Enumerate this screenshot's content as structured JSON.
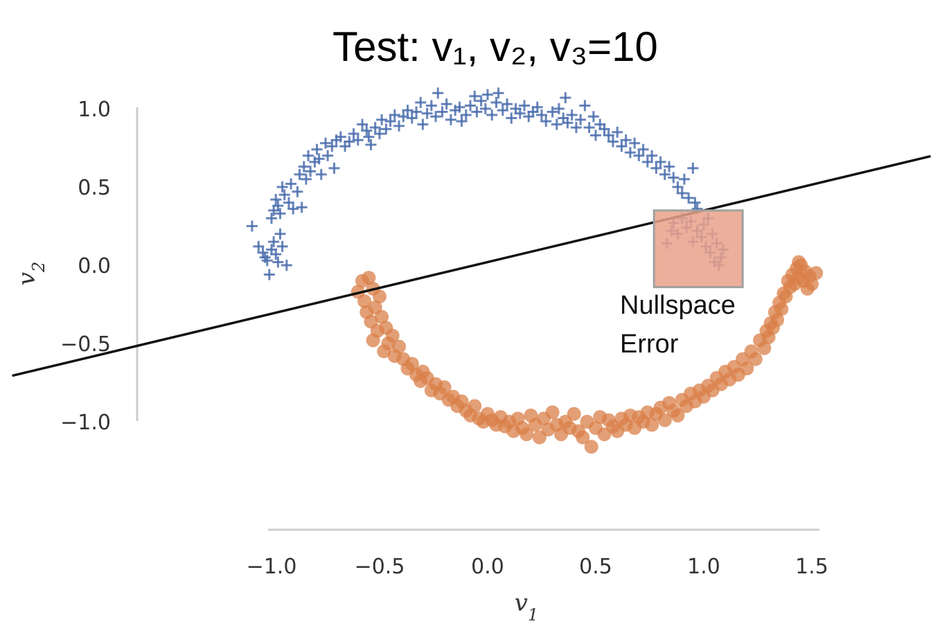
{
  "chart_data": {
    "type": "scatter",
    "title": "Test: v₁, v₂, v₃=10",
    "xlabel": "v",
    "xlabel_sub": "1",
    "ylabel": "v",
    "ylabel_sub": "2",
    "xlim": [
      -1.0,
      1.5
    ],
    "ylim": [
      -1.0,
      1.0
    ],
    "xticks": [
      -1.0,
      -0.5,
      0.0,
      0.5,
      1.0,
      1.5
    ],
    "xtick_labels": [
      "−1.0",
      "−0.5",
      "0.0",
      "0.5",
      "1.0",
      "1.5"
    ],
    "yticks": [
      1.0,
      0.5,
      0.0,
      -0.5,
      -1.0
    ],
    "ytick_labels": [
      "1.0",
      "0.5",
      "0.0",
      "−0.5",
      "−1.0"
    ],
    "grid": false,
    "decision_line": {
      "slope": 0.33,
      "intercept": 0.02
    },
    "annotation": {
      "lines": [
        "Nullspace",
        "Error"
      ],
      "region": {
        "x": [
          0.77,
          1.18
        ],
        "y": [
          -0.14,
          0.35
        ]
      },
      "color": "#e9a189"
    },
    "series": [
      {
        "marker": "plus",
        "color": "#4c6fae",
        "points": [
          [
            -1.09,
            0.25
          ],
          [
            -1.06,
            0.12
          ],
          [
            -1.04,
            0.08
          ],
          [
            -1.03,
            0.05
          ],
          [
            -1.02,
            0.03
          ],
          [
            -1.01,
            -0.06
          ],
          [
            -1.0,
            0.1
          ],
          [
            -0.99,
            0.15
          ],
          [
            -0.98,
            0.07
          ],
          [
            -0.97,
            0.02
          ],
          [
            -0.96,
            0.2
          ],
          [
            -0.95,
            0.12
          ],
          [
            -0.93,
            0.0
          ],
          [
            -1.0,
            0.3
          ],
          [
            -0.99,
            0.35
          ],
          [
            -0.98,
            0.42
          ],
          [
            -0.97,
            0.38
          ],
          [
            -0.96,
            0.33
          ],
          [
            -0.95,
            0.5
          ],
          [
            -0.94,
            0.45
          ],
          [
            -0.92,
            0.4
          ],
          [
            -0.91,
            0.52
          ],
          [
            -0.9,
            0.36
          ],
          [
            -0.88,
            0.47
          ],
          [
            -0.86,
            0.37
          ],
          [
            -0.87,
            0.58
          ],
          [
            -0.85,
            0.63
          ],
          [
            -0.84,
            0.55
          ],
          [
            -0.83,
            0.7
          ],
          [
            -0.82,
            0.6
          ],
          [
            -0.8,
            0.66
          ],
          [
            -0.79,
            0.74
          ],
          [
            -0.78,
            0.68
          ],
          [
            -0.77,
            0.58
          ],
          [
            -0.75,
            0.78
          ],
          [
            -0.74,
            0.7
          ],
          [
            -0.72,
            0.76
          ],
          [
            -0.71,
            0.62
          ],
          [
            -0.7,
            0.8
          ],
          [
            -0.68,
            0.82
          ],
          [
            -0.66,
            0.76
          ],
          [
            -0.64,
            0.79
          ],
          [
            -0.62,
            0.84
          ],
          [
            -0.6,
            0.8
          ],
          [
            -0.58,
            0.9
          ],
          [
            -0.56,
            0.86
          ],
          [
            -0.55,
            0.82
          ],
          [
            -0.54,
            0.77
          ],
          [
            -0.52,
            0.88
          ],
          [
            -0.5,
            0.84
          ],
          [
            -0.49,
            0.93
          ],
          [
            -0.47,
            0.87
          ],
          [
            -0.45,
            0.92
          ],
          [
            -0.43,
            0.96
          ],
          [
            -0.41,
            0.89
          ],
          [
            -0.39,
            0.95
          ],
          [
            -0.37,
            0.99
          ],
          [
            -0.35,
            0.94
          ],
          [
            -0.33,
            0.98
          ],
          [
            -0.31,
            1.04
          ],
          [
            -0.3,
            0.9
          ],
          [
            -0.28,
            0.97
          ],
          [
            -0.26,
            1.02
          ],
          [
            -0.24,
            0.95
          ],
          [
            -0.23,
            1.1
          ],
          [
            -0.21,
            0.98
          ],
          [
            -0.19,
            1.03
          ],
          [
            -0.17,
            0.93
          ],
          [
            -0.15,
            0.99
          ],
          [
            -0.13,
            1.01
          ],
          [
            -0.12,
            0.92
          ],
          [
            -0.1,
            0.96
          ],
          [
            -0.08,
            1.02
          ],
          [
            -0.06,
            1.08
          ],
          [
            -0.05,
            0.98
          ],
          [
            -0.03,
            1.05
          ],
          [
            -0.01,
            1.0
          ],
          [
            0.0,
            1.09
          ],
          [
            0.02,
            0.96
          ],
          [
            0.04,
            1.04
          ],
          [
            0.05,
            1.1
          ],
          [
            0.07,
            0.99
          ],
          [
            0.09,
            1.03
          ],
          [
            0.11,
            0.94
          ],
          [
            0.13,
            1.0
          ],
          [
            0.15,
            0.97
          ],
          [
            0.17,
            1.02
          ],
          [
            0.19,
            0.95
          ],
          [
            0.21,
            0.98
          ],
          [
            0.23,
            1.01
          ],
          [
            0.25,
            0.96
          ],
          [
            0.27,
            0.92
          ],
          [
            0.3,
            0.98
          ],
          [
            0.32,
            0.9
          ],
          [
            0.33,
            1.0
          ],
          [
            0.35,
            0.94
          ],
          [
            0.36,
            1.07
          ],
          [
            0.37,
            0.91
          ],
          [
            0.39,
            0.96
          ],
          [
            0.41,
            0.88
          ],
          [
            0.43,
            0.93
          ],
          [
            0.45,
            1.02
          ],
          [
            0.47,
            0.88
          ],
          [
            0.49,
            0.95
          ],
          [
            0.5,
            0.83
          ],
          [
            0.52,
            0.9
          ],
          [
            0.54,
            0.87
          ],
          [
            0.56,
            0.83
          ],
          [
            0.58,
            0.79
          ],
          [
            0.6,
            0.85
          ],
          [
            0.62,
            0.76
          ],
          [
            0.64,
            0.8
          ],
          [
            0.66,
            0.72
          ],
          [
            0.68,
            0.78
          ],
          [
            0.7,
            0.7
          ],
          [
            0.72,
            0.74
          ],
          [
            0.74,
            0.66
          ],
          [
            0.76,
            0.7
          ],
          [
            0.78,
            0.62
          ],
          [
            0.8,
            0.66
          ],
          [
            0.82,
            0.58
          ],
          [
            0.84,
            0.63
          ],
          [
            0.86,
            0.56
          ],
          [
            0.88,
            0.5
          ],
          [
            0.9,
            0.46
          ],
          [
            0.91,
            0.55
          ],
          [
            0.93,
            0.43
          ],
          [
            0.95,
            0.62
          ],
          [
            0.96,
            0.4
          ],
          [
            0.97,
            0.36
          ],
          [
            0.86,
            0.27
          ],
          [
            0.88,
            0.2
          ],
          [
            0.9,
            0.3
          ],
          [
            0.92,
            0.24
          ],
          [
            0.94,
            0.28
          ],
          [
            0.95,
            0.15
          ],
          [
            0.97,
            0.22
          ],
          [
            0.99,
            0.18
          ],
          [
            1.0,
            0.26
          ],
          [
            1.01,
            0.12
          ],
          [
            1.02,
            0.3
          ],
          [
            1.03,
            0.08
          ],
          [
            1.04,
            0.2
          ],
          [
            1.05,
            0.02
          ],
          [
            1.06,
            0.14
          ],
          [
            1.07,
            0.0
          ],
          [
            1.08,
            0.05
          ],
          [
            1.09,
            0.1
          ],
          [
            0.83,
            0.14
          ],
          [
            0.85,
            0.22
          ]
        ]
      },
      {
        "marker": "circle",
        "color": "#d97f48",
        "points": [
          [
            -0.58,
            -0.1
          ],
          [
            -0.6,
            -0.17
          ],
          [
            -0.57,
            -0.23
          ],
          [
            -0.55,
            -0.08
          ],
          [
            -0.53,
            -0.15
          ],
          [
            -0.56,
            -0.3
          ],
          [
            -0.52,
            -0.27
          ],
          [
            -0.5,
            -0.2
          ],
          [
            -0.54,
            -0.36
          ],
          [
            -0.51,
            -0.42
          ],
          [
            -0.49,
            -0.33
          ],
          [
            -0.53,
            -0.48
          ],
          [
            -0.47,
            -0.4
          ],
          [
            -0.46,
            -0.5
          ],
          [
            -0.44,
            -0.45
          ],
          [
            -0.48,
            -0.55
          ],
          [
            -0.43,
            -0.58
          ],
          [
            -0.41,
            -0.52
          ],
          [
            -0.39,
            -0.6
          ],
          [
            -0.37,
            -0.66
          ],
          [
            -0.35,
            -0.63
          ],
          [
            -0.33,
            -0.7
          ],
          [
            -0.31,
            -0.74
          ],
          [
            -0.3,
            -0.68
          ],
          [
            -0.28,
            -0.72
          ],
          [
            -0.26,
            -0.8
          ],
          [
            -0.24,
            -0.76
          ],
          [
            -0.22,
            -0.82
          ],
          [
            -0.2,
            -0.78
          ],
          [
            -0.18,
            -0.86
          ],
          [
            -0.16,
            -0.84
          ],
          [
            -0.14,
            -0.9
          ],
          [
            -0.12,
            -0.87
          ],
          [
            -0.1,
            -0.93
          ],
          [
            -0.08,
            -0.96
          ],
          [
            -0.06,
            -0.9
          ],
          [
            -0.04,
            -0.98
          ],
          [
            -0.02,
            -1.0
          ],
          [
            0.0,
            -0.95
          ],
          [
            0.02,
            -0.99
          ],
          [
            0.04,
            -1.02
          ],
          [
            0.06,
            -0.97
          ],
          [
            0.08,
            -1.03
          ],
          [
            0.1,
            -1.0
          ],
          [
            0.12,
            -1.06
          ],
          [
            0.14,
            -0.98
          ],
          [
            0.16,
            -1.04
          ],
          [
            0.18,
            -1.08
          ],
          [
            0.2,
            -0.96
          ],
          [
            0.22,
            -1.02
          ],
          [
            0.24,
            -1.1
          ],
          [
            0.26,
            -0.98
          ],
          [
            0.28,
            -1.05
          ],
          [
            0.3,
            -0.94
          ],
          [
            0.32,
            -1.02
          ],
          [
            0.34,
            -1.08
          ],
          [
            0.36,
            -1.0
          ],
          [
            0.38,
            -1.04
          ],
          [
            0.4,
            -0.95
          ],
          [
            0.42,
            -1.06
          ],
          [
            0.44,
            -1.1
          ],
          [
            0.46,
            -1.0
          ],
          [
            0.48,
            -1.16
          ],
          [
            0.5,
            -1.04
          ],
          [
            0.52,
            -0.97
          ],
          [
            0.54,
            -1.08
          ],
          [
            0.56,
            -0.99
          ],
          [
            0.58,
            -1.03
          ],
          [
            0.6,
            -1.06
          ],
          [
            0.62,
            -0.98
          ],
          [
            0.64,
            -1.02
          ],
          [
            0.66,
            -0.96
          ],
          [
            0.68,
            -1.04
          ],
          [
            0.7,
            -0.97
          ],
          [
            0.72,
            -1.0
          ],
          [
            0.74,
            -0.94
          ],
          [
            0.76,
            -1.02
          ],
          [
            0.78,
            -0.95
          ],
          [
            0.8,
            -0.91
          ],
          [
            0.82,
            -0.99
          ],
          [
            0.84,
            -0.88
          ],
          [
            0.86,
            -0.93
          ],
          [
            0.88,
            -0.96
          ],
          [
            0.9,
            -0.86
          ],
          [
            0.92,
            -0.9
          ],
          [
            0.94,
            -0.82
          ],
          [
            0.96,
            -0.87
          ],
          [
            0.98,
            -0.8
          ],
          [
            1.0,
            -0.84
          ],
          [
            1.02,
            -0.77
          ],
          [
            1.04,
            -0.8
          ],
          [
            1.06,
            -0.72
          ],
          [
            1.08,
            -0.76
          ],
          [
            1.1,
            -0.68
          ],
          [
            1.12,
            -0.73
          ],
          [
            1.14,
            -0.65
          ],
          [
            1.16,
            -0.7
          ],
          [
            1.18,
            -0.6
          ],
          [
            1.2,
            -0.66
          ],
          [
            1.22,
            -0.55
          ],
          [
            1.24,
            -0.6
          ],
          [
            1.26,
            -0.48
          ],
          [
            1.28,
            -0.53
          ],
          [
            1.29,
            -0.42
          ],
          [
            1.3,
            -0.46
          ],
          [
            1.31,
            -0.37
          ],
          [
            1.32,
            -0.4
          ],
          [
            1.33,
            -0.3
          ],
          [
            1.34,
            -0.35
          ],
          [
            1.35,
            -0.24
          ],
          [
            1.36,
            -0.28
          ],
          [
            1.37,
            -0.18
          ],
          [
            1.38,
            -0.2
          ],
          [
            1.39,
            -0.1
          ],
          [
            1.4,
            -0.14
          ],
          [
            1.41,
            -0.06
          ],
          [
            1.42,
            -0.12
          ],
          [
            1.43,
            -0.02
          ],
          [
            1.44,
            -0.08
          ],
          [
            1.45,
            0.0
          ],
          [
            1.46,
            -0.1
          ],
          [
            1.47,
            -0.04
          ],
          [
            1.48,
            -0.15
          ],
          [
            1.49,
            -0.07
          ],
          [
            1.5,
            -0.12
          ],
          [
            1.52,
            -0.05
          ],
          [
            1.44,
            0.02
          ]
        ]
      }
    ]
  }
}
